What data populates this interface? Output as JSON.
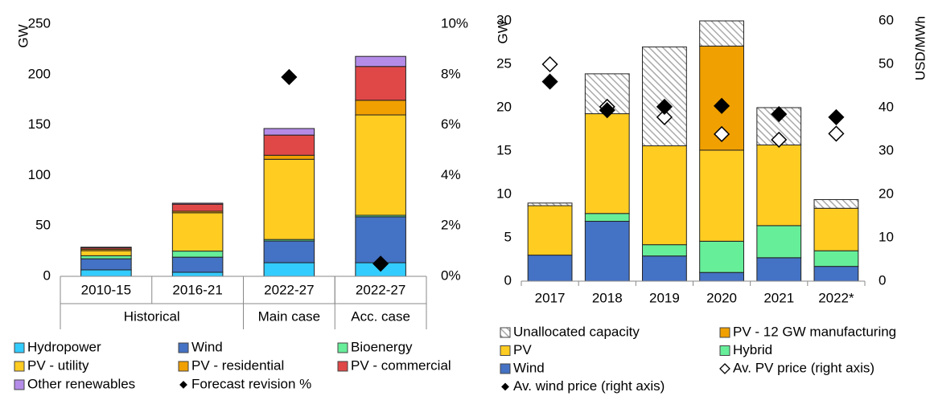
{
  "chart_data": [
    {
      "type": "bar",
      "stacked": true,
      "y_label": "GW",
      "categories": [
        "2010-15",
        "2016-21",
        "2022-27",
        "2022-27"
      ],
      "groups": [
        {
          "name": "Historical",
          "size": 2
        },
        {
          "name": "Main case",
          "size": 1
        },
        {
          "name": "Acc. case",
          "size": 1
        }
      ],
      "ylim": [
        0,
        250
      ],
      "yticks": [
        0,
        50,
        100,
        150,
        200,
        250
      ],
      "y2lim": [
        0,
        10
      ],
      "y2ticks": [
        {
          "value": 0,
          "label": "0%"
        },
        {
          "value": 2,
          "label": "2%"
        },
        {
          "value": 4,
          "label": "4%"
        },
        {
          "value": 6,
          "label": "6%"
        },
        {
          "value": 8,
          "label": "8%"
        },
        {
          "value": 10,
          "label": "10%"
        }
      ],
      "series": [
        {
          "name": "Hydropower",
          "color": "#33ccff",
          "values": [
            6.4,
            4,
            13.5,
            13.5
          ]
        },
        {
          "name": "Wind",
          "color": "#4472c4",
          "values": [
            11,
            15,
            21.5,
            45.5
          ]
        },
        {
          "name": "Bioenergy",
          "color": "#66ee99",
          "values": [
            3,
            6,
            1.5,
            1.5
          ]
        },
        {
          "name": "PV - utility",
          "color": "#ffcc22",
          "values": [
            5,
            38,
            79.5,
            99.5
          ]
        },
        {
          "name": "PV - residential",
          "color": "#f0a000",
          "values": [
            1.5,
            1.5,
            4,
            14.5
          ]
        },
        {
          "name": "PV - commercial",
          "color": "#e04848",
          "values": [
            1.5,
            7,
            20,
            33.5
          ]
        },
        {
          "name": "Other renewables",
          "color": "#b48ce8",
          "values": [
            0.5,
            1,
            6.5,
            10
          ]
        },
        {
          "name": "Forecast revision %",
          "type": "scatter",
          "axis": "y2",
          "color": "#000000",
          "values": [
            null,
            null,
            7.9,
            0.5
          ]
        }
      ]
    },
    {
      "type": "bar",
      "stacked": true,
      "y_label": "GW",
      "y2_label": "USD/MWh",
      "categories": [
        "2017",
        "2018",
        "2019",
        "2020",
        "2021",
        "2022*"
      ],
      "ylim": [
        0,
        30
      ],
      "yticks": [
        0,
        5,
        10,
        15,
        20,
        25,
        30
      ],
      "y2lim": [
        0,
        60
      ],
      "y2ticks": [
        0,
        10,
        20,
        30,
        40,
        50,
        60
      ],
      "series": [
        {
          "name": "Unallocated capacity",
          "color": "hatch",
          "values": [
            0.3,
            4.6,
            11.4,
            2.9,
            4.3,
            1.0
          ]
        },
        {
          "name": "PV - 12 GW manufacturing",
          "color": "#f0a000",
          "values": [
            0,
            0,
            0,
            12,
            0,
            0
          ]
        },
        {
          "name": "PV",
          "color": "#ffcc22",
          "values": [
            5.7,
            11.5,
            11.4,
            10.5,
            9.3,
            4.9
          ]
        },
        {
          "name": "Hybrid",
          "color": "#66ee99",
          "values": [
            0,
            0.9,
            1.3,
            3.6,
            3.7,
            1.8
          ]
        },
        {
          "name": "Wind",
          "color": "#4472c4",
          "values": [
            3.0,
            6.9,
            2.9,
            1.0,
            2.7,
            1.7
          ]
        },
        {
          "name": "Av. PV price (right axis)",
          "type": "scatter",
          "axis": "y2",
          "color": "#ffffff",
          "values": [
            50,
            40.2,
            37.8,
            33.9,
            32.6,
            34
          ]
        },
        {
          "name": "Av. wind price (right axis)",
          "type": "scatter",
          "axis": "y2",
          "color": "#000000",
          "values": [
            46,
            39.4,
            40.2,
            40.4,
            38.5,
            37.8
          ]
        }
      ]
    }
  ]
}
